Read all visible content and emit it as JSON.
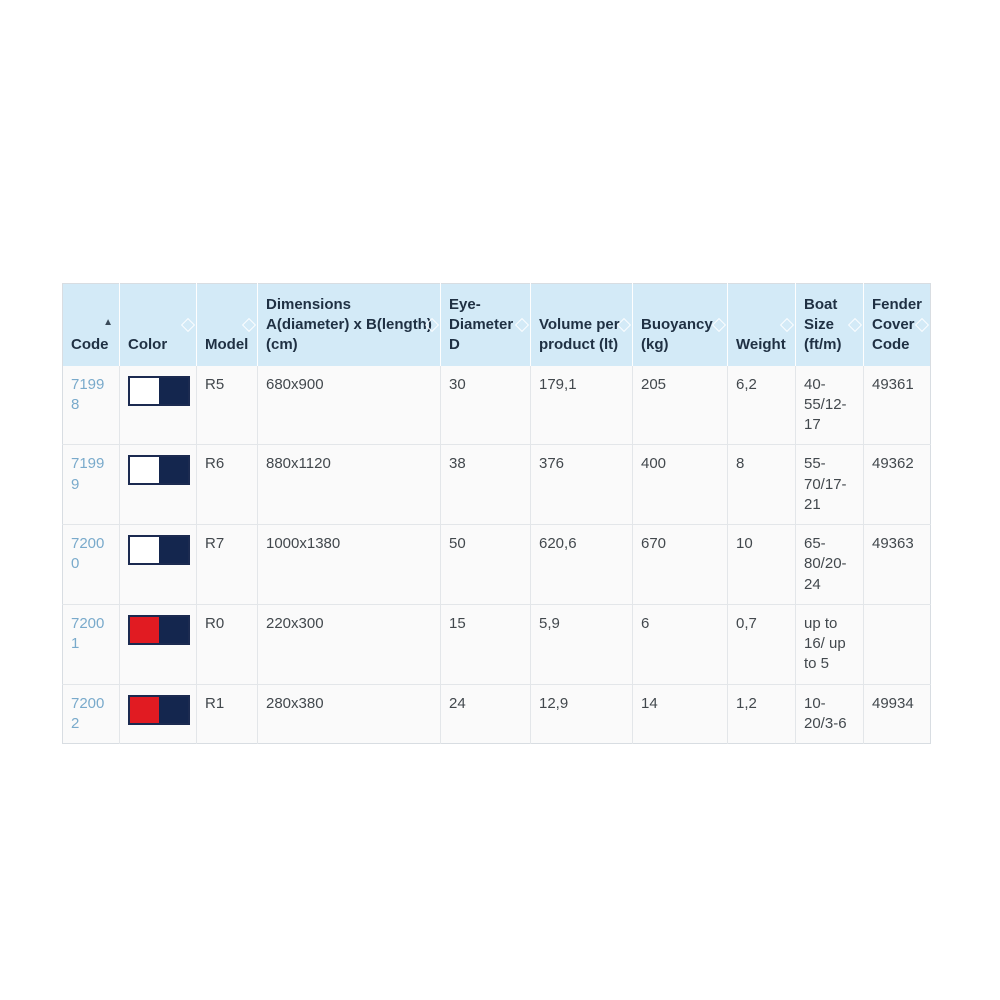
{
  "theme": {
    "header_bg": "#d3eaf7",
    "header_text": "#1f3043",
    "body_bg": "#fafafa",
    "body_text": "#42484d",
    "link_color": "#79aacb",
    "border_outer": "#d8dde2",
    "border_inner": "#e3e6e9",
    "swatch_border": "#1b2a50",
    "sort_arrow": "#3a4a59",
    "navy": "#14264e",
    "red": "#e11b22",
    "white": "#ffffff"
  },
  "table": {
    "columns": [
      {
        "label": "Code",
        "sorted": "asc"
      },
      {
        "label": "Color",
        "sorted": "none"
      },
      {
        "label": "Model",
        "sorted": "none"
      },
      {
        "label": "Dimensions A(diameter) x B(length) (cm)",
        "sorted": "none"
      },
      {
        "label": "Eye-Diameter D",
        "sorted": "none"
      },
      {
        "label": "Volume per product (lt)",
        "sorted": "none"
      },
      {
        "label": "Buoyancy (kg)",
        "sorted": "none"
      },
      {
        "label": "Weight",
        "sorted": "none"
      },
      {
        "label": "Boat Size (ft/m)",
        "sorted": "none"
      },
      {
        "label": "Fender Cover Code",
        "sorted": "none"
      }
    ],
    "rows": [
      {
        "code": "71998",
        "swatch": {
          "left": "#ffffff",
          "right": "#14264e"
        },
        "model": "R5",
        "dimensions": "680x900",
        "eye_diameter": "30",
        "volume": "179,1",
        "buoyancy": "205",
        "weight": "6,2",
        "boat_size": "40-55/12-17",
        "fender_cover_code": "49361"
      },
      {
        "code": "71999",
        "swatch": {
          "left": "#ffffff",
          "right": "#14264e"
        },
        "model": "R6",
        "dimensions": "880x1120",
        "eye_diameter": "38",
        "volume": "376",
        "buoyancy": "400",
        "weight": "8",
        "boat_size": "55-70/17-21",
        "fender_cover_code": "49362"
      },
      {
        "code": "72000",
        "swatch": {
          "left": "#ffffff",
          "right": "#14264e"
        },
        "model": "R7",
        "dimensions": "1000x1380",
        "eye_diameter": "50",
        "volume": "620,6",
        "buoyancy": "670",
        "weight": "10",
        "boat_size": "65-80/20-24",
        "fender_cover_code": "49363"
      },
      {
        "code": "72001",
        "swatch": {
          "left": "#e11b22",
          "right": "#14264e"
        },
        "model": "R0",
        "dimensions": "220x300",
        "eye_diameter": "15",
        "volume": "5,9",
        "buoyancy": "6",
        "weight": "0,7",
        "boat_size": "up to 16/ up to 5",
        "fender_cover_code": ""
      },
      {
        "code": "72002",
        "swatch": {
          "left": "#e11b22",
          "right": "#14264e"
        },
        "model": "R1",
        "dimensions": "280x380",
        "eye_diameter": "24",
        "volume": "12,9",
        "buoyancy": "14",
        "weight": "1,2",
        "boat_size": "10-20/3-6",
        "fender_cover_code": "49934"
      }
    ]
  }
}
